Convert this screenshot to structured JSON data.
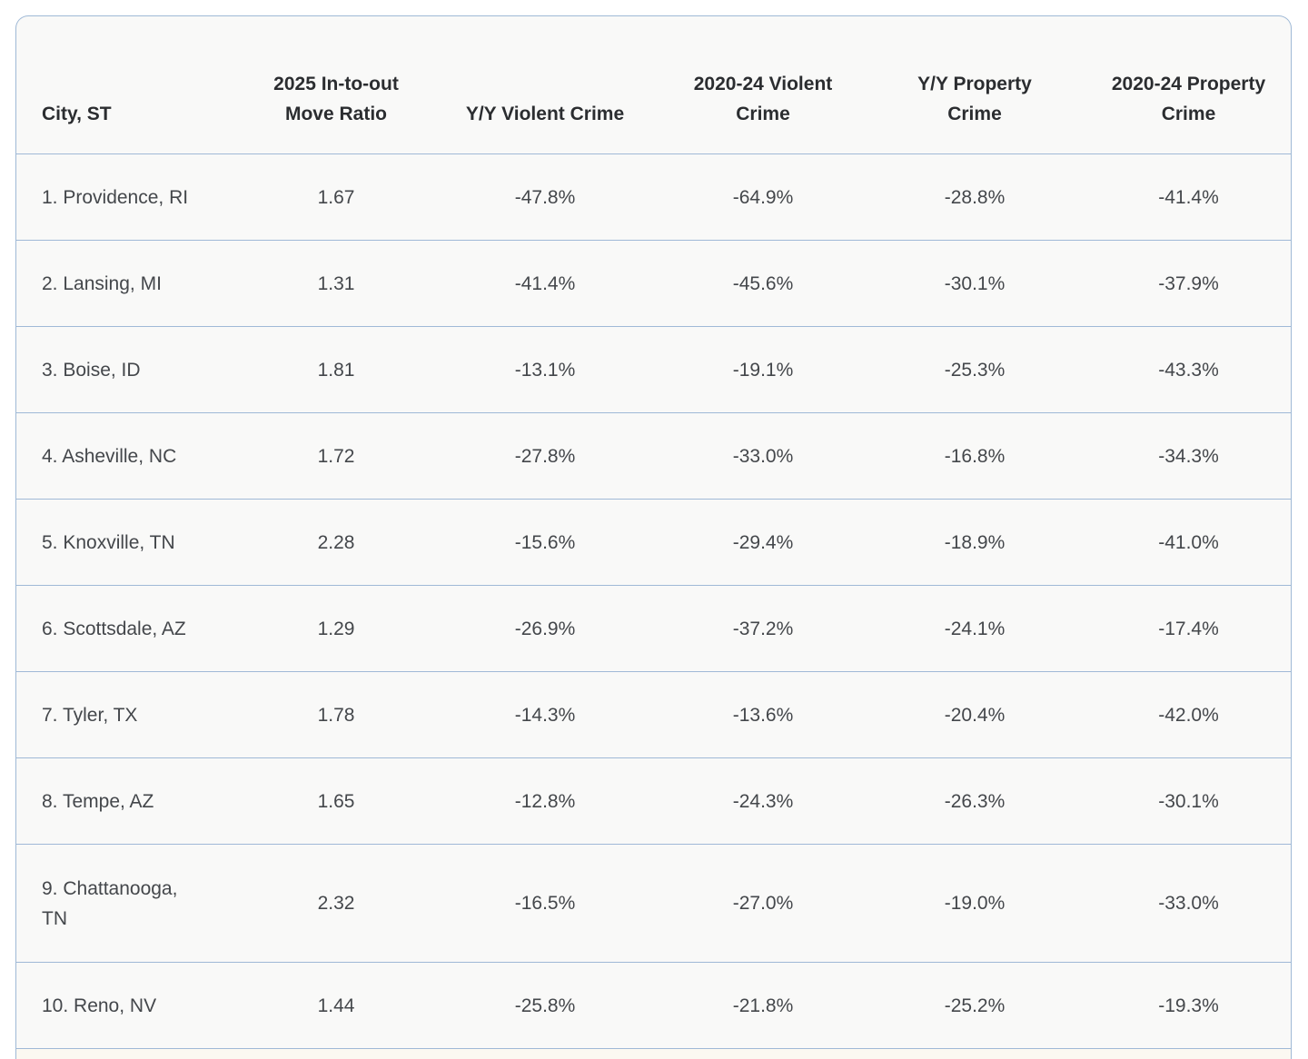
{
  "table": {
    "name": "city-crime-move-ratio-table",
    "columns": [
      {
        "label": "City, ST"
      },
      {
        "label": "2025 In-to-out\nMove Ratio"
      },
      {
        "label": "Y/Y Violent Crime"
      },
      {
        "label": "2020-24 Violent\nCrime"
      },
      {
        "label": "Y/Y Property\nCrime"
      },
      {
        "label": "2020-24 Property\nCrime"
      }
    ],
    "rows": [
      {
        "cells": [
          "1. Providence, RI",
          "1.67",
          "-47.8%",
          "-64.9%",
          "-28.8%",
          "-41.4%"
        ],
        "tall": false
      },
      {
        "cells": [
          "2. Lansing, MI",
          "1.31",
          "-41.4%",
          "-45.6%",
          "-30.1%",
          "-37.9%"
        ],
        "tall": false
      },
      {
        "cells": [
          "3. Boise, ID",
          "1.81",
          "-13.1%",
          "-19.1%",
          "-25.3%",
          "-43.3%"
        ],
        "tall": false
      },
      {
        "cells": [
          "4. Asheville, NC",
          "1.72",
          "-27.8%",
          "-33.0%",
          "-16.8%",
          "-34.3%"
        ],
        "tall": false
      },
      {
        "cells": [
          "5. Knoxville, TN",
          "2.28",
          "-15.6%",
          "-29.4%",
          "-18.9%",
          "-41.0%"
        ],
        "tall": false
      },
      {
        "cells": [
          "6. Scottsdale, AZ",
          "1.29",
          "-26.9%",
          "-37.2%",
          "-24.1%",
          "-17.4%"
        ],
        "tall": false
      },
      {
        "cells": [
          "7. Tyler, TX",
          "1.78",
          "-14.3%",
          "-13.6%",
          "-20.4%",
          "-42.0%"
        ],
        "tall": false
      },
      {
        "cells": [
          "8. Tempe, AZ",
          "1.65",
          "-12.8%",
          "-24.3%",
          "-26.3%",
          "-30.1%"
        ],
        "tall": false
      },
      {
        "cells": [
          "9. Chattanooga,\nTN",
          "2.32",
          "-16.5%",
          "-27.0%",
          "-19.0%",
          "-33.0%"
        ],
        "tall": true
      },
      {
        "cells": [
          "10. Reno, NV",
          "1.44",
          "-25.8%",
          "-21.8%",
          "-25.2%",
          "-19.3%"
        ],
        "tall": false
      }
    ]
  },
  "colors": {
    "table_border": "#9fb9d6",
    "row_separator": "#a0b9d7",
    "table_background": "#f9f9f8",
    "page_background": "#ffffff",
    "header_text": "#2b2d30",
    "body_text": "#44474b",
    "next_row_sliver": "#fbf8f1"
  }
}
